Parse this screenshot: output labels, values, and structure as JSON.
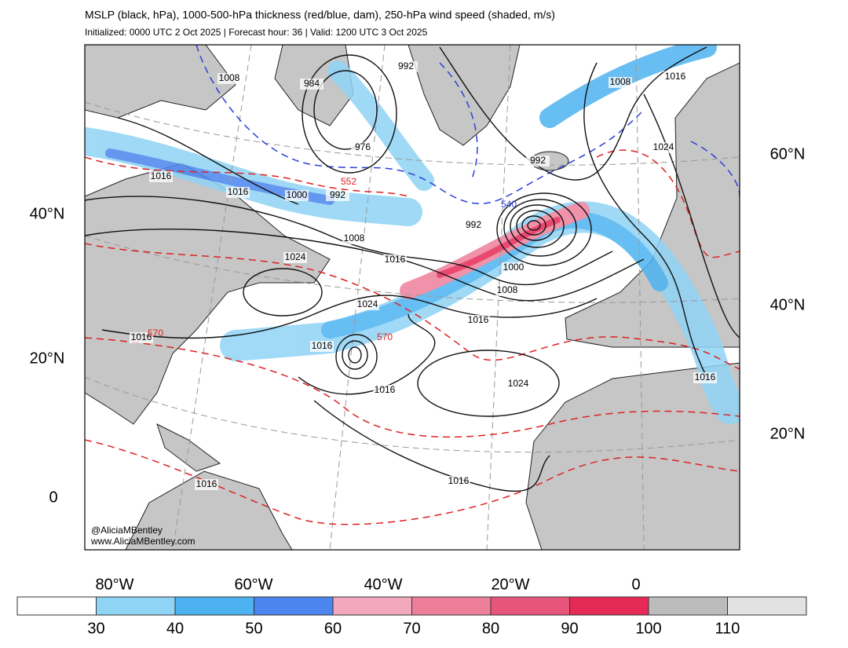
{
  "header": {
    "title": "MSLP (black, hPa), 1000-500-hPa thickness (red/blue, dam), 250-hPa wind speed (shaded, m/s)",
    "subtitle": "Initialized: 0000 UTC 2 Oct 2025 | Forecast hour: 36 | Valid: 1200 UTC 3 Oct 2025"
  },
  "axes": {
    "left_lat": [
      "40°N",
      "20°N",
      "0"
    ],
    "right_lat": [
      "60°N",
      "40°N",
      "20°N"
    ],
    "bottom_lon": [
      "80°W",
      "60°W",
      "40°W",
      "20°W",
      "0"
    ]
  },
  "mslp_labels": [
    "1008",
    "984",
    "992",
    "976",
    "1016",
    "1016",
    "1000",
    "992",
    "1008",
    "1024",
    "1016",
    "992",
    "992",
    "1000",
    "1008",
    "1016",
    "1024",
    "1016",
    "1016",
    "1016",
    "1024",
    "1016",
    "1016",
    "1008",
    "1016",
    "1024",
    "1016"
  ],
  "thickness_labels": [
    {
      "text": "552",
      "color": "#d22"
    },
    {
      "text": "540",
      "color": "#2b3fd6"
    },
    {
      "text": "570",
      "color": "#d22"
    },
    {
      "text": "570",
      "color": "#d22"
    }
  ],
  "credits": [
    "@AliciaMBentley",
    "www.AliciaMBentley.com"
  ],
  "colorbar": {
    "colors": [
      "#ffffff",
      "#8fd3f5",
      "#4db3f0",
      "#4a86ee",
      "#f2a9bd",
      "#ee7f9b",
      "#e8557a",
      "#e62a57",
      "#bcbcbc",
      "#e2e2e2"
    ],
    "ticks": [
      30,
      40,
      50,
      60,
      70,
      80,
      90,
      100,
      110
    ]
  }
}
